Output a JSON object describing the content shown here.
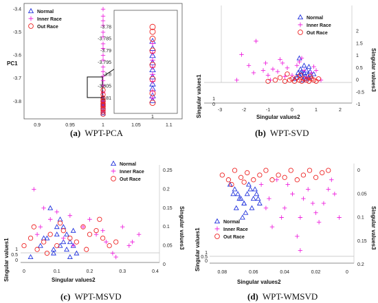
{
  "colors": {
    "normal": "#2233dd",
    "inner": "#ee22dd",
    "outer": "#ee2222",
    "axis": "#444444"
  },
  "chart_data": [
    {
      "type": "scatter",
      "title": "",
      "caption_label": "(a)",
      "caption_text": "WPT-PCA",
      "ylabel": "PC1",
      "xlim": [
        0.88,
        1.12
      ],
      "ylim": [
        -3.86,
        -3.39
      ],
      "xticks": [
        "0.9",
        "0.95",
        "1",
        "1.05",
        "1.1"
      ],
      "yticks": [
        "-3.4",
        "-3.5",
        "-3.6",
        "-3.7",
        "-3.8"
      ],
      "legend": [
        "Normal",
        "Inner Race",
        "Out Race"
      ],
      "series": [
        {
          "name": "Normal",
          "marker": "triangle",
          "x": [
            1,
            1,
            1,
            1,
            1,
            1,
            1,
            1,
            1
          ],
          "y": [
            -3.79,
            -3.8,
            -3.805,
            -3.81,
            -3.815,
            -3.82,
            -3.83,
            -3.84,
            -3.85
          ]
        },
        {
          "name": "Inner Race",
          "marker": "plus",
          "x": [
            1,
            1,
            1,
            1,
            1,
            1,
            1,
            1,
            1,
            1,
            1,
            1,
            1,
            1,
            1,
            1,
            1,
            1,
            1,
            1
          ],
          "y": [
            -3.4,
            -3.43,
            -3.45,
            -3.47,
            -3.5,
            -3.52,
            -3.55,
            -3.57,
            -3.6,
            -3.62,
            -3.65,
            -3.67,
            -3.69,
            -3.71,
            -3.73,
            -3.76,
            -3.78,
            -3.8,
            -3.82,
            -3.84
          ]
        },
        {
          "name": "Out Race",
          "marker": "circle",
          "x": [
            1,
            1,
            1,
            1,
            1,
            1,
            1,
            1,
            1,
            1,
            1,
            1
          ],
          "y": [
            -3.75,
            -3.77,
            -3.785,
            -3.795,
            -3.8,
            -3.81,
            -3.815,
            -3.82,
            -3.83,
            -3.835,
            -3.845,
            -3.855
          ]
        }
      ],
      "inset": {
        "ylim": [
          -3.815,
          -3.775
        ],
        "xtick": "1",
        "yticks": [
          "-3.78",
          "-3.785",
          "-3.79",
          "-3.795",
          "-3.8",
          "-3.805",
          "-3.81"
        ],
        "series": [
          {
            "name": "Normal",
            "marker": "triangle",
            "y": [
              -3.786,
              -3.789,
              -3.792,
              -3.795,
              -3.798,
              -3.801,
              -3.804,
              -3.806,
              -3.809,
              -3.811
            ]
          },
          {
            "name": "Inner Race",
            "marker": "plus",
            "y": [
              -3.787,
              -3.791,
              -3.794,
              -3.797,
              -3.8,
              -3.803,
              -3.807,
              -3.81
            ]
          },
          {
            "name": "Out Race",
            "marker": "circle",
            "y": [
              -3.78,
              -3.782,
              -3.785,
              -3.79,
              -3.796,
              -3.802,
              -3.808,
              -3.812
            ]
          }
        ]
      }
    },
    {
      "type": "scatter",
      "title": "",
      "caption_label": "(b)",
      "caption_text": "WPT-SVD",
      "xlabel": "Singular values2",
      "ylabel": "Singular values1",
      "zlabel": "Singular values3",
      "xlim": [
        -3,
        2
      ],
      "zlim": [
        -1,
        2.5
      ],
      "xticks": [
        "-3",
        "-2",
        "-1",
        "0",
        "1",
        "2"
      ],
      "zticks": [
        "2",
        "1.5",
        "1",
        "0.5",
        "0",
        "-0.5",
        "-1"
      ],
      "ylab_ticks": [
        "1",
        "0"
      ],
      "legend": [
        "Normal",
        "Inner Race",
        "Out Race"
      ],
      "series": [
        {
          "name": "Normal",
          "marker": "triangle",
          "x": [
            0.1,
            0.2,
            0.3,
            0.4,
            0.5,
            0.55,
            0.6,
            0.65,
            0.7,
            0.75,
            0.8,
            0.35,
            0.45,
            0.7,
            0.25,
            0.9,
            0.5,
            0.6,
            0.4,
            0.3
          ],
          "y": [
            0.05,
            0.1,
            0.2,
            0.25,
            0.3,
            0.15,
            0.4,
            0.2,
            0.1,
            0.35,
            0.15,
            0.45,
            0.0,
            0.55,
            0.3,
            0.25,
            0.6,
            0.05,
            0.35,
            0.9
          ]
        },
        {
          "name": "Inner Race",
          "marker": "plus",
          "x": [
            -2.1,
            -1.8,
            -1.6,
            -1.2,
            -1.0,
            -0.8,
            -0.6,
            -0.4,
            -0.2,
            0.0,
            0.2,
            0.4,
            0.6,
            0.8,
            1.0,
            1.2,
            -1.5,
            -0.9,
            -0.3,
            0.3,
            0.9,
            -2.3,
            -1.1,
            0.5,
            -0.5
          ],
          "y": [
            1.05,
            0.6,
            0.3,
            0.4,
            0.2,
            0.45,
            0.35,
            0.7,
            0.5,
            0.2,
            0.6,
            0.9,
            0.1,
            0.3,
            0.4,
            0.0,
            1.6,
            0.0,
            0.15,
            0.75,
            0.55,
            0.0,
            0.7,
            0.4,
            0.85
          ]
        },
        {
          "name": "Out Race",
          "marker": "circle",
          "x": [
            -1.0,
            -0.7,
            -0.5,
            -0.3,
            -0.1,
            0.0,
            0.1,
            0.2,
            0.3,
            0.4,
            0.5,
            0.6,
            0.7,
            0.8,
            0.9,
            1.0,
            1.1,
            -0.2,
            0.35,
            0.75
          ],
          "y": [
            -0.05,
            0.0,
            0.1,
            -0.05,
            0.0,
            0.05,
            -0.05,
            0.1,
            0.0,
            -0.05,
            0.05,
            0.0,
            -0.05,
            0.05,
            0.0,
            -0.05,
            0.05,
            0.25,
            0.2,
            0.15
          ]
        }
      ]
    },
    {
      "type": "scatter",
      "title": "",
      "caption_label": "(c)",
      "caption_text": "WPT-MSVD",
      "xlabel": "Singular values2",
      "ylabel": "Singular values1",
      "zlabel": "Singular values3",
      "xlim": [
        0,
        0.4
      ],
      "zlim": [
        0,
        0.25
      ],
      "xticks": [
        "0",
        "0.1",
        "0.2",
        "0.3",
        "0.4"
      ],
      "zticks": [
        "0.25",
        "0.2",
        "0.15",
        "0.1",
        "0.05",
        "0"
      ],
      "ylab_ticks": [
        "1",
        "0.5",
        "0"
      ],
      "legend": [
        "Normal",
        "Inner Race",
        "Out Race"
      ],
      "series": [
        {
          "name": "Normal",
          "marker": "triangle",
          "x": [
            0.02,
            0.05,
            0.07,
            0.09,
            0.1,
            0.11,
            0.12,
            0.13,
            0.14,
            0.15,
            0.16,
            0.08,
            0.12,
            0.14,
            0.1,
            0.06,
            0.13,
            0.09,
            0.11,
            0.15
          ],
          "y": [
            0.02,
            0.05,
            0.07,
            0.03,
            0.08,
            0.05,
            0.1,
            0.04,
            0.06,
            0.09,
            0.03,
            0.15,
            0.06,
            0.02,
            0.1,
            0.07,
            0.08,
            0.04,
            0.12,
            0.05
          ]
        },
        {
          "name": "Inner Race",
          "marker": "plus",
          "x": [
            0.03,
            0.05,
            0.08,
            0.1,
            0.12,
            0.15,
            0.18,
            0.2,
            0.22,
            0.25,
            0.27,
            0.3,
            0.32,
            0.35,
            0.06,
            0.14,
            0.24,
            0.28,
            0.33,
            0.04
          ],
          "y": [
            0.2,
            0.1,
            0.12,
            0.14,
            0.07,
            0.05,
            0.1,
            0.12,
            0.08,
            0.06,
            0.03,
            0.1,
            0.05,
            0.08,
            0.15,
            0.13,
            0.09,
            0.02,
            0.06,
            0.08
          ]
        },
        {
          "name": "Out Race",
          "marker": "circle",
          "x": [
            0.0,
            0.02,
            0.04,
            0.06,
            0.08,
            0.1,
            0.12,
            0.14,
            0.16,
            0.18,
            0.2,
            0.22,
            0.24,
            0.26,
            0.28,
            0.03,
            0.07,
            0.11,
            0.19,
            0.23
          ],
          "y": [
            0.05,
            0.07,
            0.04,
            0.06,
            0.08,
            0.05,
            0.09,
            0.07,
            0.06,
            0.1,
            0.08,
            0.09,
            0.07,
            0.05,
            0.06,
            0.1,
            0.03,
            0.11,
            0.04,
            0.12
          ]
        }
      ]
    },
    {
      "type": "scatter",
      "title": "",
      "caption_label": "(d)",
      "caption_text": "WPT-WMSVD",
      "xlabel": "Singular values2",
      "ylabel": "Singular values1",
      "zlabel": "Singular values3",
      "xlim": [
        0.085,
        0.0
      ],
      "zlim": [
        0.2,
        0.0
      ],
      "xticks": [
        "0.08",
        "0.06",
        "0.04",
        "0.02",
        "0"
      ],
      "zticks": [
        "0",
        "0.05",
        "0.1",
        "0.15",
        "0.2"
      ],
      "ylab_ticks": [
        "1",
        "0.5",
        "0"
      ],
      "legend": [
        "Normal",
        "Inner Race",
        "Out Race"
      ],
      "series": [
        {
          "name": "Normal",
          "marker": "triangle",
          "x": [
            0.075,
            0.072,
            0.07,
            0.068,
            0.066,
            0.064,
            0.062,
            0.06,
            0.058,
            0.056,
            0.071,
            0.065,
            0.063,
            0.059,
            0.069,
            0.061,
            0.067,
            0.057,
            0.073,
            0.066
          ],
          "y": [
            0.03,
            0.04,
            0.05,
            0.06,
            0.07,
            0.05,
            0.04,
            0.06,
            0.05,
            0.07,
            0.08,
            0.09,
            0.03,
            0.04,
            0.06,
            0.08,
            0.1,
            0.06,
            0.05,
            0.07
          ]
        },
        {
          "name": "Inner Race",
          "marker": "plus",
          "x": [
            0.055,
            0.05,
            0.045,
            0.04,
            0.035,
            0.03,
            0.025,
            0.02,
            0.015,
            0.01,
            0.005,
            0.048,
            0.038,
            0.028,
            0.018,
            0.008,
            0.052,
            0.042,
            0.032,
            0.022,
            0.012,
            0.03
          ],
          "y": [
            0.03,
            0.06,
            0.02,
            0.08,
            0.05,
            0.1,
            0.04,
            0.09,
            0.07,
            0.02,
            0.1,
            0.12,
            0.03,
            0.06,
            0.11,
            0.05,
            0.08,
            0.1,
            0.14,
            0.07,
            0.04,
            0.17
          ]
        },
        {
          "name": "Out Race",
          "marker": "circle",
          "x": [
            0.08,
            0.076,
            0.072,
            0.068,
            0.064,
            0.06,
            0.056,
            0.052,
            0.048,
            0.044,
            0.04,
            0.036,
            0.032,
            0.028,
            0.024,
            0.02,
            0.016,
            0.012,
            0.074,
            0.066
          ],
          "y": [
            0.01,
            0.02,
            0.0,
            0.015,
            0.005,
            0.02,
            0.01,
            0.0,
            0.02,
            0.01,
            0.015,
            0.0,
            0.02,
            0.01,
            0.0,
            0.015,
            0.005,
            0.0,
            0.03,
            0.025
          ]
        }
      ]
    }
  ]
}
